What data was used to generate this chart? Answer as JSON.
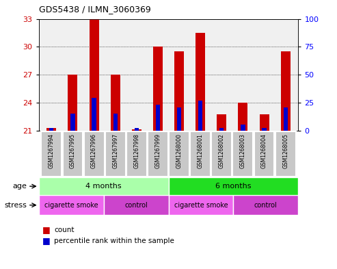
{
  "title": "GDS5438 / ILMN_3060369",
  "samples": [
    "GSM1267994",
    "GSM1267995",
    "GSM1267996",
    "GSM1267997",
    "GSM1267998",
    "GSM1267999",
    "GSM1268000",
    "GSM1268001",
    "GSM1268002",
    "GSM1268003",
    "GSM1268004",
    "GSM1268005"
  ],
  "red_values": [
    21.3,
    27.0,
    33.0,
    27.0,
    21.1,
    30.0,
    29.5,
    31.5,
    22.7,
    24.0,
    22.7,
    29.5
  ],
  "blue_values": [
    21.3,
    22.8,
    24.5,
    22.8,
    21.3,
    23.8,
    23.5,
    24.2,
    21.3,
    21.6,
    21.3,
    23.5
  ],
  "ylim_left": [
    21,
    33
  ],
  "yticks_left": [
    21,
    24,
    27,
    30,
    33
  ],
  "ylim_right": [
    0,
    100
  ],
  "yticks_right": [
    0,
    25,
    50,
    75,
    100
  ],
  "bar_bottom": 21,
  "age_groups": [
    {
      "label": "4 months",
      "start": 0,
      "end": 6,
      "color": "#aaffaa"
    },
    {
      "label": "6 months",
      "start": 6,
      "end": 12,
      "color": "#22dd22"
    }
  ],
  "stress_groups": [
    {
      "label": "cigarette smoke",
      "start": 0,
      "end": 3,
      "color": "#ee66ee"
    },
    {
      "label": "control",
      "start": 3,
      "end": 6,
      "color": "#cc44cc"
    },
    {
      "label": "cigarette smoke",
      "start": 6,
      "end": 9,
      "color": "#ee66ee"
    },
    {
      "label": "control",
      "start": 9,
      "end": 12,
      "color": "#cc44cc"
    }
  ],
  "red_color": "#cc0000",
  "blue_color": "#0000cc",
  "bar_width": 0.45,
  "blue_bar_width": 0.2,
  "plot_bg_color": "#f0f0f0",
  "legend_count_label": "count",
  "legend_pct_label": "percentile rank within the sample",
  "sample_box_color": "#c8c8c8"
}
